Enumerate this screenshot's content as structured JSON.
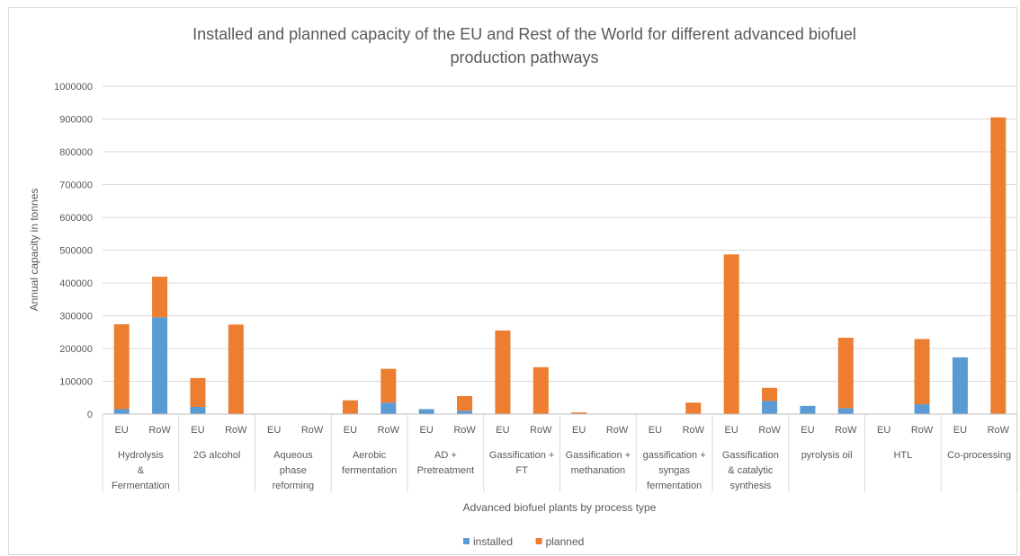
{
  "chart_data": {
    "type": "bar",
    "stacked": true,
    "title_lines": [
      "Installed and planned capacity of the EU and Rest of the World for different advanced biofuel",
      "production pathways"
    ],
    "ylabel": "Annual capacity in tonnes",
    "xlabel": "Advanced biofuel plants by process type",
    "ylim": [
      0,
      1000000
    ],
    "yticks": [
      "0",
      "100000",
      "200000",
      "300000",
      "400000",
      "500000",
      "600000",
      "700000",
      "800000",
      "900000",
      "1000000"
    ],
    "grid": true,
    "legend_position": "bottom",
    "groups": [
      {
        "lines": [
          "Hydrolysis",
          "&",
          "Fermentation"
        ],
        "regions": [
          "EU",
          "RoW"
        ]
      },
      {
        "lines": [
          "2G alcohol"
        ],
        "regions": [
          "EU",
          "RoW"
        ]
      },
      {
        "lines": [
          "Aqueous",
          "phase",
          "reforming"
        ],
        "regions": [
          "EU",
          "RoW"
        ]
      },
      {
        "lines": [
          "Aerobic",
          "fermentation"
        ],
        "regions": [
          "EU",
          "RoW"
        ]
      },
      {
        "lines": [
          "AD +",
          "Pretreatment"
        ],
        "regions": [
          "EU",
          "RoW"
        ]
      },
      {
        "lines": [
          "Gassification +",
          "FT"
        ],
        "regions": [
          "EU",
          "RoW"
        ]
      },
      {
        "lines": [
          "Gassification +",
          "methanation"
        ],
        "regions": [
          "EU",
          "RoW"
        ]
      },
      {
        "lines": [
          "gassification +",
          "syngas",
          "fermentation"
        ],
        "regions": [
          "EU",
          "RoW"
        ]
      },
      {
        "lines": [
          "Gassification",
          "& catalytic",
          "synthesis"
        ],
        "regions": [
          "EU",
          "RoW"
        ]
      },
      {
        "lines": [
          "pyrolysis oil"
        ],
        "regions": [
          "EU",
          "RoW"
        ]
      },
      {
        "lines": [
          "HTL"
        ],
        "regions": [
          "EU",
          "RoW"
        ]
      },
      {
        "lines": [
          "Co-processing"
        ],
        "regions": [
          "EU",
          "RoW"
        ]
      }
    ],
    "series": [
      {
        "name": "installed",
        "color": "#5b9bd5",
        "values": [
          15000,
          295000,
          22000,
          0,
          0,
          0,
          0,
          35000,
          15000,
          10000,
          0,
          0,
          0,
          0,
          0,
          0,
          0,
          40000,
          25000,
          18000,
          0,
          30000,
          173000,
          0
        ]
      },
      {
        "name": "planned",
        "color": "#ed7d31",
        "values": [
          259000,
          124000,
          88000,
          273000,
          0,
          0,
          42000,
          103000,
          0,
          45000,
          255000,
          143000,
          5000,
          0,
          0,
          35000,
          487000,
          40000,
          0,
          215000,
          0,
          199000,
          0,
          905000
        ]
      }
    ]
  }
}
